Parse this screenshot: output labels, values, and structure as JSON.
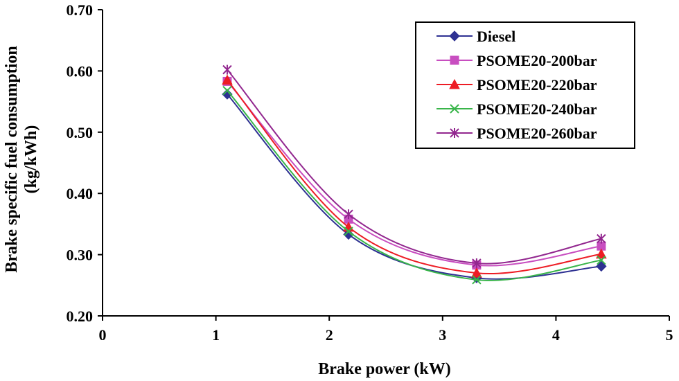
{
  "chart_data": {
    "type": "line",
    "title": "",
    "xlabel": "Brake power (kW)",
    "ylabel_lines": [
      "Brake specific fuel consumption",
      "(kg/kWh)"
    ],
    "xlim": [
      0,
      5
    ],
    "ylim": [
      0.2,
      0.7
    ],
    "x_ticks": [
      "0",
      "1",
      "2",
      "3",
      "4",
      "5"
    ],
    "y_ticks": [
      "0.20",
      "0.30",
      "0.40",
      "0.50",
      "0.60",
      "0.70"
    ],
    "grid": false,
    "legend_position": "top-right",
    "x": [
      1.1,
      2.17,
      3.3,
      4.4
    ],
    "series": [
      {
        "name": "Diesel",
        "values": [
          0.562,
          0.333,
          0.262,
          0.281
        ],
        "color": "#2e3192",
        "marker": "diamond"
      },
      {
        "name": "PSOME20-200bar",
        "values": [
          0.583,
          0.358,
          0.283,
          0.314
        ],
        "color": "#c84ec0",
        "marker": "square"
      },
      {
        "name": "PSOME20-220bar",
        "values": [
          0.585,
          0.345,
          0.27,
          0.301
        ],
        "color": "#ed1c24",
        "marker": "triangle"
      },
      {
        "name": "PSOME20-240bar",
        "values": [
          0.568,
          0.338,
          0.259,
          0.291
        ],
        "color": "#39b54a",
        "marker": "x"
      },
      {
        "name": "PSOME20-260bar",
        "values": [
          0.602,
          0.366,
          0.286,
          0.326
        ],
        "color": "#92278f",
        "marker": "star"
      }
    ]
  }
}
